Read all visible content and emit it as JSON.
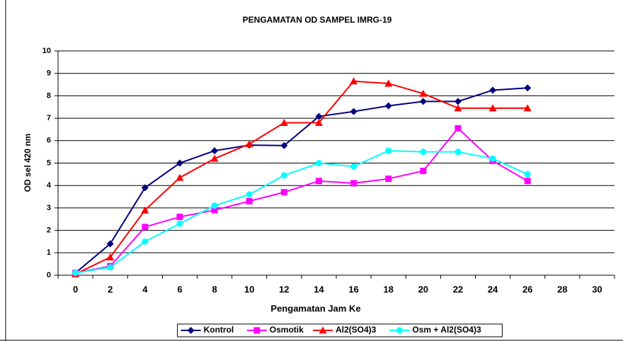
{
  "chart_data": {
    "type": "line",
    "title": "PENGAMATAN OD SAMPEL IMRG-19",
    "x_label": "Pengamatan Jam Ke",
    "y_label": "OD sel 420 nm",
    "categories": [
      0,
      2,
      4,
      6,
      8,
      10,
      12,
      14,
      16,
      18,
      20,
      22,
      24,
      26,
      28,
      30
    ],
    "ylim": [
      0,
      10
    ],
    "yticks": [
      0,
      1,
      2,
      3,
      4,
      5,
      6,
      7,
      8,
      9,
      10
    ],
    "grid": true,
    "legend": "bottom",
    "series": [
      {
        "name": "Kontrol",
        "color": "#000080",
        "marker": "diamond",
        "values": [
          0.1,
          1.4,
          3.9,
          5.0,
          5.55,
          5.8,
          5.78,
          7.08,
          7.3,
          7.55,
          7.75,
          7.75,
          8.25,
          8.35,
          null,
          null
        ]
      },
      {
        "name": "Osmotik",
        "color": "#ff00ff",
        "marker": "square",
        "values": [
          0.1,
          0.4,
          2.15,
          2.6,
          2.9,
          3.3,
          3.7,
          4.2,
          4.1,
          4.3,
          4.65,
          6.55,
          5.1,
          4.2,
          null,
          null
        ]
      },
      {
        "name": "Al2(SO4)3",
        "color": "#ff0000",
        "marker": "triangle",
        "values": [
          0.05,
          0.8,
          2.9,
          4.35,
          5.2,
          5.85,
          6.8,
          6.8,
          8.65,
          8.55,
          8.1,
          7.45,
          7.45,
          7.45,
          null,
          null
        ]
      },
      {
        "name": "Osm + Al2(SO4)3",
        "color": "#00ffff",
        "marker": "circle",
        "values": [
          0.1,
          0.35,
          1.5,
          2.3,
          3.1,
          3.6,
          4.45,
          5.0,
          4.85,
          5.55,
          5.5,
          5.5,
          5.2,
          4.5,
          null,
          null
        ]
      }
    ]
  }
}
